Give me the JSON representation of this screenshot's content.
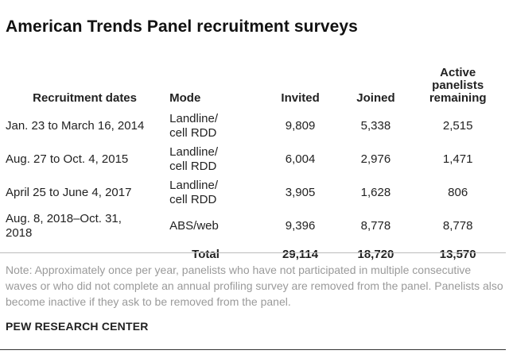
{
  "title": "American Trends Panel recruitment surveys",
  "headers": {
    "dates": "Recruitment dates",
    "mode": "Mode",
    "invited": "Invited",
    "joined": "Joined",
    "active_1": "Active",
    "active_2": "panelists",
    "active_3": "remaining"
  },
  "rows": [
    {
      "dates_1": "Jan. 23 to March 16, 2014",
      "dates_2": "",
      "mode_1": "Landline/",
      "mode_2": "cell RDD",
      "invited": "9,809",
      "joined": "5,338",
      "active": "2,515"
    },
    {
      "dates_1": "Aug. 27 to Oct. 4, 2015",
      "dates_2": "",
      "mode_1": "Landline/",
      "mode_2": "cell RDD",
      "invited": "6,004",
      "joined": "2,976",
      "active": "1,471"
    },
    {
      "dates_1": "April 25 to June 4, 2017",
      "dates_2": "",
      "mode_1": "Landline/",
      "mode_2": "cell RDD",
      "invited": "3,905",
      "joined": "1,628",
      "active": "806"
    },
    {
      "dates_1": "Aug. 8, 2018–Oct. 31,",
      "dates_2": "2018",
      "mode_1": "ABS/web",
      "mode_2": "",
      "invited": "9,396",
      "joined": "8,778",
      "active": "8,778"
    }
  ],
  "total": {
    "label": "Total",
    "invited": "29,114",
    "joined": "18,720",
    "active": "13,570"
  },
  "note": "Note: Approximately once per year, panelists who have not participated in multiple consecutive waves or who did not complete an annual profiling survey are removed from the panel. Panelists also become inactive if they ask to be removed from the panel.",
  "source": "PEW RESEARCH CENTER"
}
